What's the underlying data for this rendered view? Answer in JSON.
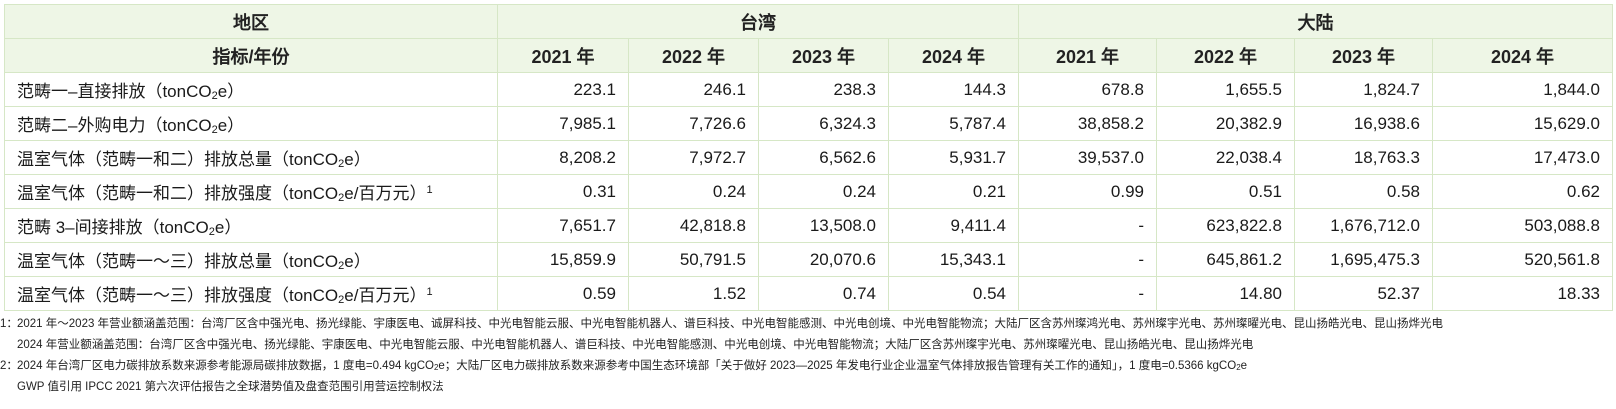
{
  "header": {
    "region": "地区",
    "taiwan": "台湾",
    "mainland": "大陆",
    "indicator_year": "指标/年份",
    "years": [
      "2021 年",
      "2022 年",
      "2023 年",
      "2024 年",
      "2021 年",
      "2022 年",
      "2023 年",
      "2024 年"
    ]
  },
  "rows": [
    {
      "label": "范畴一–直接排放（tonCO",
      "sub": "2",
      "tail": "e）",
      "sup": "",
      "values": [
        "223.1",
        "246.1",
        "238.3",
        "144.3",
        "678.8",
        "1,655.5",
        "1,824.7",
        "1,844.0"
      ]
    },
    {
      "label": "范畴二–外购电力（tonCO",
      "sub": "2",
      "tail": "e）",
      "sup": "",
      "values": [
        "7,985.1",
        "7,726.6",
        "6,324.3",
        "5,787.4",
        "38,858.2",
        "20,382.9",
        "16,938.6",
        "15,629.0"
      ]
    },
    {
      "label": "温室气体（范畴一和二）排放总量（tonCO",
      "sub": "2",
      "tail": "e）",
      "sup": "",
      "values": [
        "8,208.2",
        "7,972.7",
        "6,562.6",
        "5,931.7",
        "39,537.0",
        "22,038.4",
        "18,763.3",
        "17,473.0"
      ]
    },
    {
      "label": "温室气体（范畴一和二）排放强度（tonCO",
      "sub": "2",
      "tail": "e/百万元）",
      "sup": "1",
      "values": [
        "0.31",
        "0.24",
        "0.24",
        "0.21",
        "0.99",
        "0.51",
        "0.58",
        "0.62"
      ]
    },
    {
      "label": "范畴 3–间接排放（tonCO",
      "sub": "2",
      "tail": "e）",
      "sup": "",
      "values": [
        "7,651.7",
        "42,818.8",
        "13,508.0",
        "9,411.4",
        "-",
        "623,822.8",
        "1,676,712.0",
        "503,088.8"
      ]
    },
    {
      "label": "温室气体（范畴一～三）排放总量（tonCO",
      "sub": "2",
      "tail": "e）",
      "sup": "",
      "values": [
        "15,859.9",
        "50,791.5",
        "20,070.6",
        "15,343.1",
        "-",
        "645,861.2",
        "1,695,475.3",
        "520,561.8"
      ]
    },
    {
      "label": "温室气体（范畴一～三）排放强度（tonCO",
      "sub": "2",
      "tail": "e/百万元）",
      "sup": "1",
      "values": [
        "0.59",
        "1.52",
        "0.74",
        "0.54",
        "-",
        "14.80",
        "52.37",
        "18.33"
      ]
    }
  ],
  "notes": {
    "n1_mark": "1：",
    "n1_text": "2021 年～2023 年营业额涵盖范围：台湾厂区含中强光电、扬光绿能、宇康医电、诚屏科技、中光电智能云服、中光电智能机器人、谱巨科技、中光电智能感测、中光电创境、中光电智能物流；大陆厂区含苏州璨鸿光电、苏州璨宇光电、苏州璨曜光电、昆山扬皓光电、昆山扬烨光电",
    "n1b_text": "2024 年营业额涵盖范围：台湾厂区含中强光电、扬光绿能、宇康医电、中光电智能云服、中光电智能机器人、谱巨科技、中光电智能感测、中光电创境、中光电智能物流；大陆厂区含苏州璨宇光电、苏州璨曜光电、昆山扬皓光电、昆山扬烨光电",
    "n2_mark": "2：",
    "n2_a": "2024 年台湾厂区电力碳排放系数来源参考能源局碳排放数据，1 度电=0.494 kgCO",
    "n2_sub1": "2",
    "n2_b": "e；大陆厂区电力碳排放系数来源参考中国生态环境部「关于做好 2023—2025 年发电行业企业温室气体排放报告管理有关工作的通知」，1 度电=0.5366 kgCO",
    "n2_sub2": "2",
    "n2_c": "e",
    "n3_text": "GWP 值引用 IPCC 2021 第六次评估报告之全球潜势值及盘查范围引用营运控制权法"
  }
}
